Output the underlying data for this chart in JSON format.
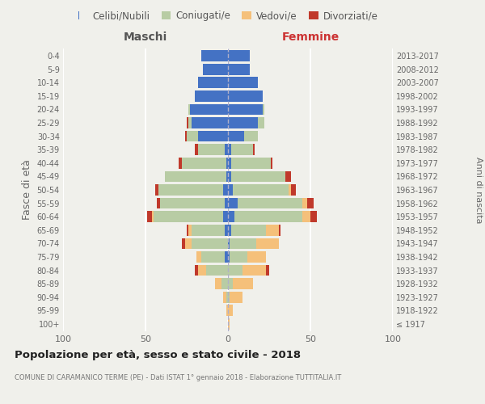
{
  "age_groups": [
    "100+",
    "95-99",
    "90-94",
    "85-89",
    "80-84",
    "75-79",
    "70-74",
    "65-69",
    "60-64",
    "55-59",
    "50-54",
    "45-49",
    "40-44",
    "35-39",
    "30-34",
    "25-29",
    "20-24",
    "15-19",
    "10-14",
    "5-9",
    "0-4"
  ],
  "birth_years": [
    "≤ 1917",
    "1918-1922",
    "1923-1927",
    "1928-1932",
    "1933-1937",
    "1938-1942",
    "1943-1947",
    "1948-1952",
    "1953-1957",
    "1958-1962",
    "1963-1967",
    "1968-1972",
    "1973-1977",
    "1978-1982",
    "1983-1987",
    "1988-1992",
    "1993-1997",
    "1998-2002",
    "2003-2007",
    "2008-2012",
    "2013-2017"
  ],
  "male_single": [
    0,
    0,
    0,
    0,
    0,
    2,
    0,
    2,
    3,
    2,
    3,
    1,
    1,
    2,
    18,
    22,
    23,
    20,
    18,
    15,
    16
  ],
  "male_married": [
    0,
    0,
    1,
    4,
    13,
    14,
    22,
    20,
    42,
    39,
    39,
    37,
    27,
    16,
    7,
    2,
    1,
    0,
    0,
    0,
    0
  ],
  "male_widowed": [
    0,
    1,
    2,
    4,
    5,
    3,
    4,
    2,
    1,
    0,
    0,
    0,
    0,
    0,
    0,
    0,
    0,
    0,
    0,
    0,
    0
  ],
  "male_divorced": [
    0,
    0,
    0,
    0,
    2,
    0,
    2,
    1,
    3,
    2,
    2,
    0,
    2,
    2,
    1,
    1,
    0,
    0,
    0,
    0,
    0
  ],
  "female_single": [
    0,
    0,
    0,
    0,
    0,
    1,
    1,
    2,
    4,
    6,
    3,
    2,
    2,
    2,
    10,
    18,
    21,
    21,
    18,
    13,
    13
  ],
  "female_married": [
    0,
    0,
    1,
    3,
    9,
    11,
    16,
    21,
    41,
    39,
    34,
    33,
    24,
    13,
    8,
    4,
    1,
    0,
    0,
    0,
    0
  ],
  "female_widowed": [
    1,
    3,
    8,
    12,
    14,
    11,
    14,
    8,
    5,
    3,
    1,
    0,
    0,
    0,
    0,
    0,
    0,
    0,
    0,
    0,
    0
  ],
  "female_divorced": [
    0,
    0,
    0,
    0,
    2,
    0,
    0,
    1,
    4,
    4,
    3,
    3,
    1,
    1,
    0,
    0,
    0,
    0,
    0,
    0,
    0
  ],
  "color_single": "#4472c4",
  "color_married": "#b8cca4",
  "color_widowed": "#f5c07a",
  "color_divorced": "#c0392b",
  "title_main": "Popolazione per età, sesso e stato civile - 2018",
  "title_sub": "COMUNE DI CARAMANICO TERME (PE) - Dati ISTAT 1° gennaio 2018 - Elaborazione TUTTITALIA.IT",
  "xlabel_left": "Maschi",
  "xlabel_right": "Femmine",
  "ylabel": "Fasce di età",
  "ylabel_right": "Anni di nascita",
  "legend_labels": [
    "Celibi/Nubili",
    "Coniugati/e",
    "Vedovi/e",
    "Divorziati/e"
  ],
  "xlim": 100,
  "background_color": "#f0f0eb"
}
